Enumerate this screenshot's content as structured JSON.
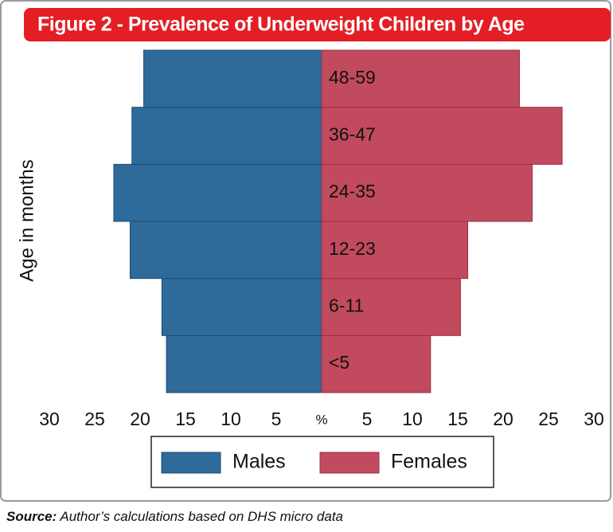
{
  "chart_data": {
    "type": "pyramid",
    "title": "Figure 2 - Prevalence of Underweight Children by Age",
    "ylabel": "Age in months",
    "categories": [
      "<5",
      "6-11",
      "12-23",
      "24-35",
      "36-47",
      "48-59"
    ],
    "series": [
      {
        "name": "Males",
        "color": "#2e6a9a",
        "side": "left",
        "values": [
          17.1,
          17.6,
          21.1,
          22.9,
          20.9,
          19.6
        ]
      },
      {
        "name": "Females",
        "color": "#c24a5e",
        "side": "right",
        "values": [
          12.0,
          15.3,
          16.1,
          23.2,
          26.5,
          21.8
        ]
      }
    ],
    "xlim": [
      -30,
      30
    ],
    "xticks": [
      {
        "value": -30,
        "label": "30"
      },
      {
        "value": -25,
        "label": "25"
      },
      {
        "value": -20,
        "label": "20"
      },
      {
        "value": -15,
        "label": "15"
      },
      {
        "value": -10,
        "label": "10"
      },
      {
        "value": -5,
        "label": "5"
      },
      {
        "value": 0,
        "label": "%"
      },
      5,
      10,
      15,
      20,
      25,
      30
    ],
    "legend": "bottom",
    "source_label": "Source:",
    "source_text": "Author’s calculations based on DHS micro data"
  }
}
